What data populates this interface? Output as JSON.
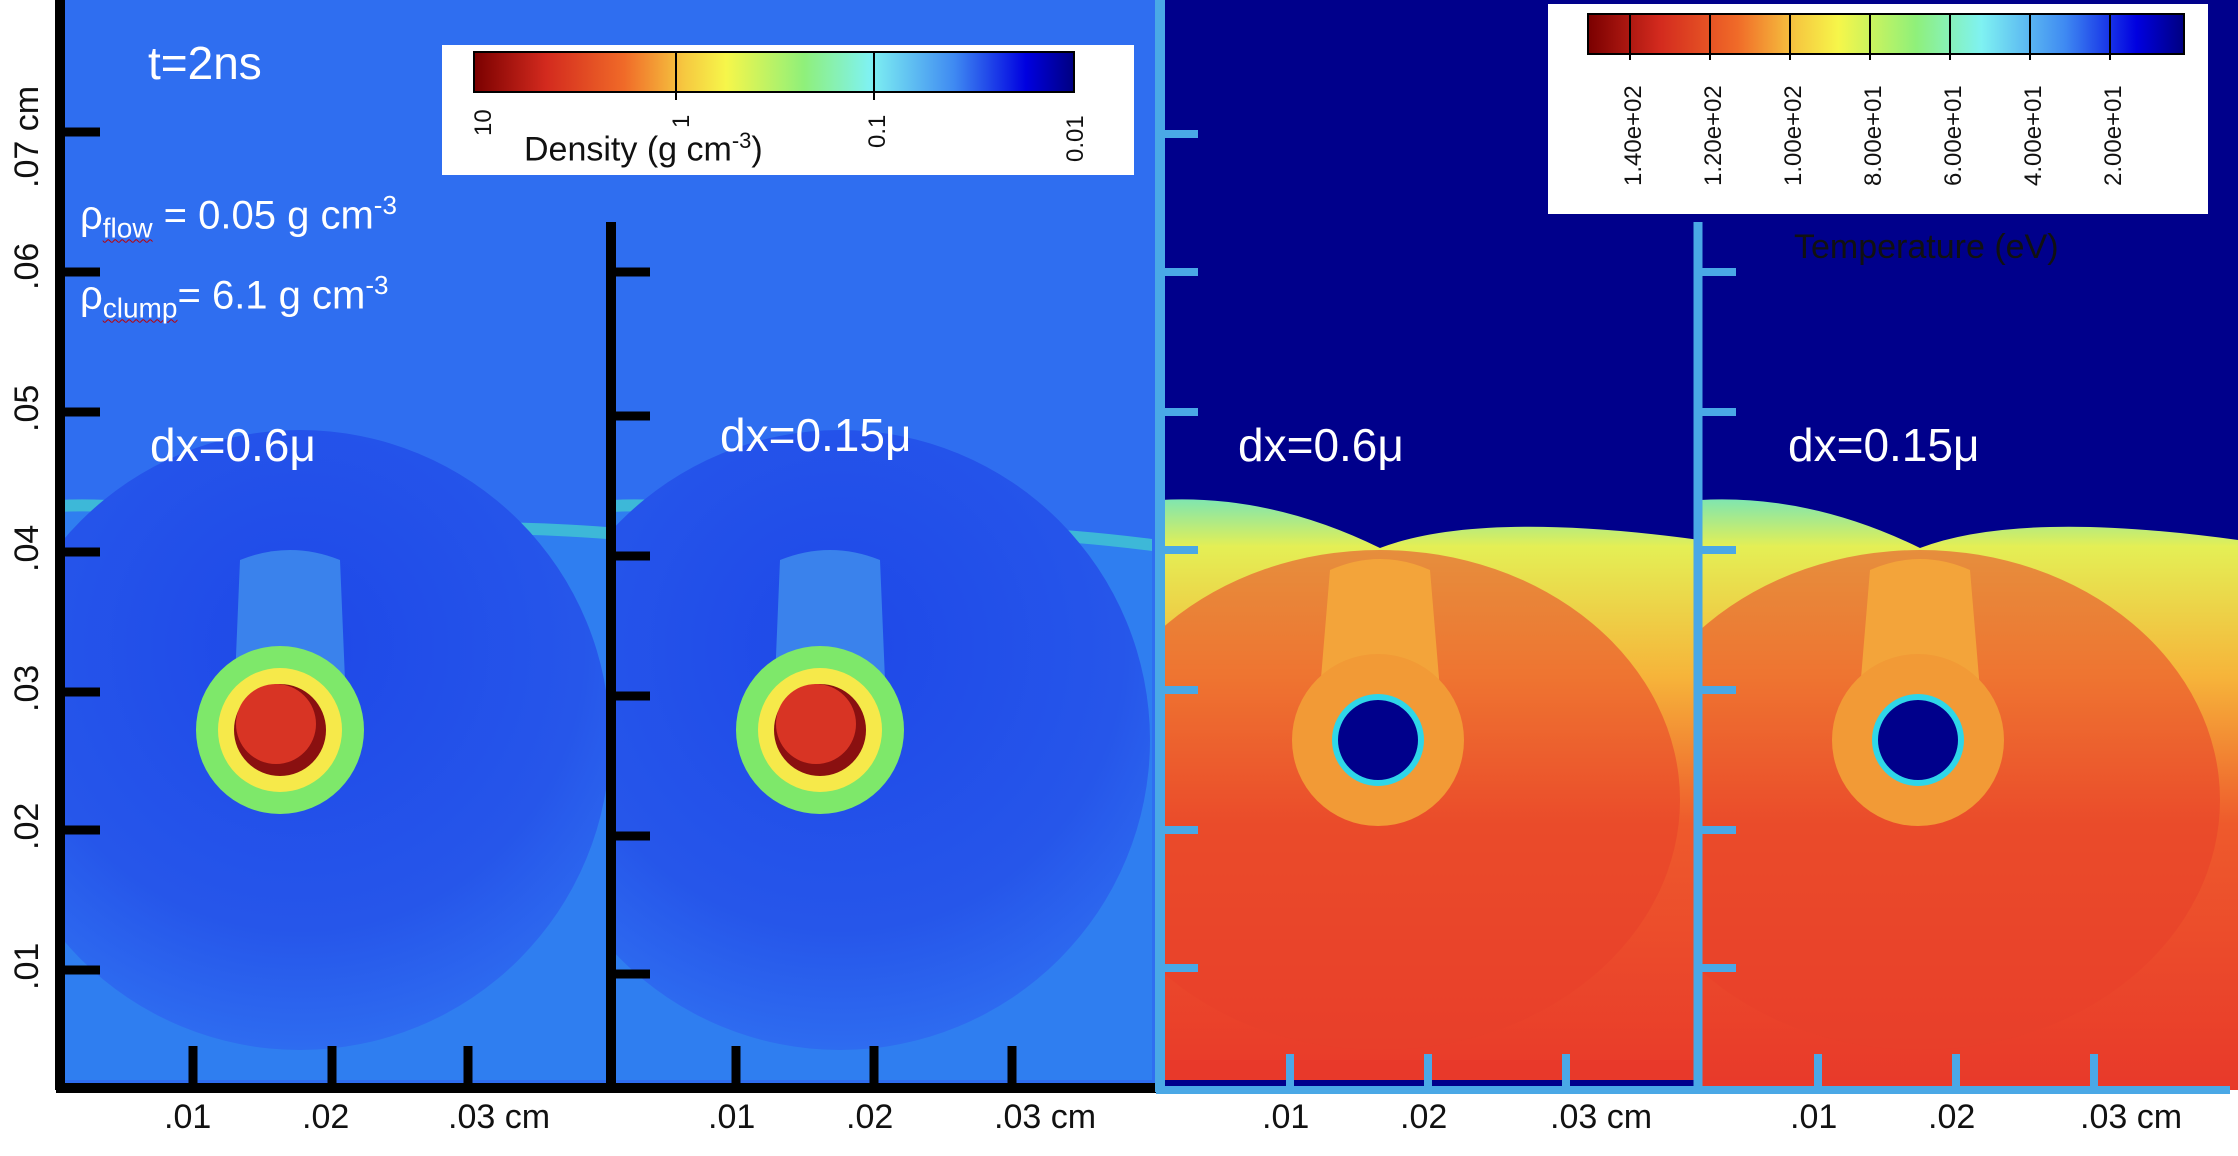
{
  "time_label": "t=2ns",
  "rho_flow": {
    "symbol": "ρ",
    "sub": "flow",
    "text": " = 0.05 g cm",
    "exp": "-3"
  },
  "rho_clump": {
    "symbol": "ρ",
    "sub": "clump",
    "text": "= 6.1 g cm",
    "exp": "-3"
  },
  "panels": [
    {
      "label": "dx=0.6μ",
      "field": "density"
    },
    {
      "label": "dx=0.15μ",
      "field": "density"
    },
    {
      "label": "dx=0.6μ",
      "field": "temperature"
    },
    {
      "label": "dx=0.15μ",
      "field": "temperature"
    }
  ],
  "x_axis": {
    "ticks_left": [
      ".01",
      ".02",
      ".03 cm"
    ],
    "ticks_right": [
      ".01",
      ".02",
      ".03 cm"
    ],
    "ticks_panel2": [
      ".01",
      ".02",
      ".03 cm"
    ],
    "ticks_panel4": [
      ".01",
      ".02",
      ".03 cm"
    ]
  },
  "y_axis": {
    "ticks": [
      ".07 cm",
      ".06",
      ".05",
      ".04",
      ".03",
      ".02",
      ".01"
    ]
  },
  "density_colorbar": {
    "title": "Density (g cm",
    "title_exp": "-3",
    "title_close": ")",
    "scale": "log",
    "ticks": [
      "10",
      "1",
      "0.1",
      "0.01"
    ],
    "colors": [
      "#7a0000",
      "#e8302a",
      "#f39c2a",
      "#f6f64a",
      "#8ff07a",
      "#7ff2f2",
      "#3f8af2",
      "#0000e0",
      "#000080"
    ]
  },
  "temperature_colorbar": {
    "title": "Temperature (eV)",
    "ticks": [
      "1.40e+02",
      "1.20e+02",
      "1.00e+02",
      "8.00e+01",
      "6.00e+01",
      "4.00e+01",
      "2.00e+01"
    ],
    "colors": [
      "#7a0000",
      "#e8302a",
      "#f39c2a",
      "#f6f64a",
      "#8ff07a",
      "#7ff2f2",
      "#3f8af2",
      "#0000e0",
      "#000080"
    ]
  },
  "colors": {
    "density_background": "#2f6ef0",
    "temperature_background": "#00008b",
    "density_axis": "#000000",
    "temperature_axis": "#4aa8e6",
    "clump_red": "#d83424",
    "hot_red": "#e8392a"
  }
}
